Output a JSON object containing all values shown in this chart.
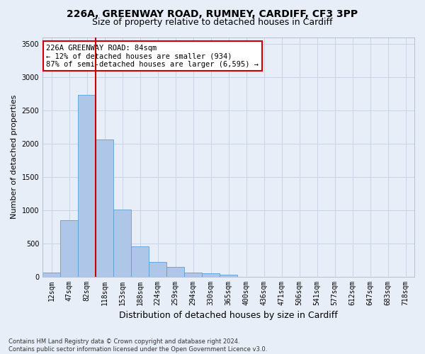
{
  "title_line1": "226A, GREENWAY ROAD, RUMNEY, CARDIFF, CF3 3PP",
  "title_line2": "Size of property relative to detached houses in Cardiff",
  "xlabel": "Distribution of detached houses by size in Cardiff",
  "ylabel": "Number of detached properties",
  "footnote": "Contains HM Land Registry data © Crown copyright and database right 2024.\nContains public sector information licensed under the Open Government Licence v3.0.",
  "bar_labels": [
    "12sqm",
    "47sqm",
    "82sqm",
    "118sqm",
    "153sqm",
    "188sqm",
    "224sqm",
    "259sqm",
    "294sqm",
    "330sqm",
    "365sqm",
    "400sqm",
    "436sqm",
    "471sqm",
    "506sqm",
    "541sqm",
    "577sqm",
    "612sqm",
    "647sqm",
    "683sqm",
    "718sqm"
  ],
  "bar_values": [
    60,
    855,
    2730,
    2060,
    1010,
    455,
    225,
    150,
    65,
    50,
    35,
    0,
    0,
    0,
    0,
    0,
    0,
    0,
    0,
    0,
    0
  ],
  "bar_color": "#aec6e8",
  "bar_edgecolor": "#5a9fd4",
  "grid_color": "#c8d4e8",
  "background_color": "#e8eef8",
  "vline_x_index": 2,
  "vline_color": "#cc0000",
  "ylim": [
    0,
    3600
  ],
  "yticks": [
    0,
    500,
    1000,
    1500,
    2000,
    2500,
    3000,
    3500
  ],
  "annotation_text": "226A GREENWAY ROAD: 84sqm\n← 12% of detached houses are smaller (934)\n87% of semi-detached houses are larger (6,595) →",
  "annotation_box_facecolor": "#ffffff",
  "annotation_box_edgecolor": "#cc0000",
  "title1_fontsize": 10,
  "title2_fontsize": 9,
  "xlabel_fontsize": 9,
  "ylabel_fontsize": 8,
  "tick_fontsize": 7,
  "annotation_fontsize": 7.5,
  "footnote_fontsize": 6
}
